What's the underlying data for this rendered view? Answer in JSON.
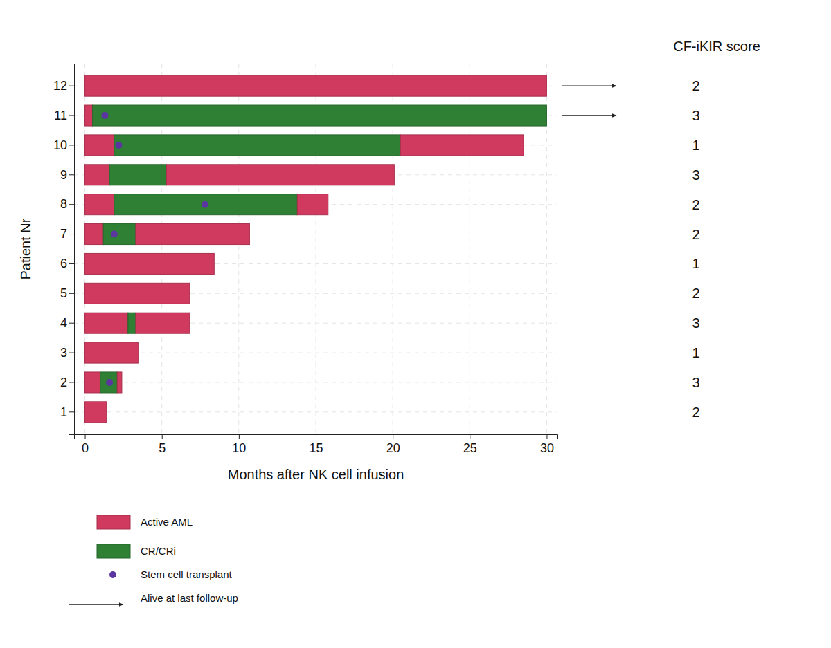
{
  "chart_data": {
    "type": "swimmer",
    "orientation": "horizontal",
    "stacked": true,
    "grid": true,
    "x_label": "Months after NK cell infusion",
    "y_label": "Patient Nr",
    "xlim": [
      -0.7,
      30.7
    ],
    "xticks": [
      0,
      5,
      10,
      15,
      20,
      25,
      30
    ],
    "categories": [
      "1",
      "2",
      "3",
      "4",
      "5",
      "6",
      "7",
      "8",
      "9",
      "10",
      "11",
      "12"
    ],
    "series": [
      {
        "name": "Active AML",
        "color": "#d03a5f"
      },
      {
        "name": "CR/CRi",
        "color": "#2f7f35"
      }
    ],
    "transplant_marker": {
      "name": "Stem cell transplant",
      "color": "#5b35a0"
    },
    "alive_marker": {
      "name": "Alive at last follow-up",
      "color": "#222222"
    },
    "score_title": "CF-iKIR score",
    "patients": [
      {
        "segments": [
          {
            "state": "Active AML",
            "months": 1.4
          }
        ],
        "transplant": null,
        "alive": false,
        "cf_ikir_score": 2
      },
      {
        "segments": [
          {
            "state": "Active AML",
            "months": 1.0
          },
          {
            "state": "CR/CRi",
            "months": 1.1
          },
          {
            "state": "Active AML",
            "months": 0.3
          }
        ],
        "transplant": 1.6,
        "alive": false,
        "cf_ikir_score": 3
      },
      {
        "segments": [
          {
            "state": "Active AML",
            "months": 3.5
          }
        ],
        "transplant": null,
        "alive": false,
        "cf_ikir_score": 1
      },
      {
        "segments": [
          {
            "state": "Active AML",
            "months": 2.8
          },
          {
            "state": "CR/CRi",
            "months": 0.5
          },
          {
            "state": "Active AML",
            "months": 3.5
          }
        ],
        "transplant": null,
        "alive": false,
        "cf_ikir_score": 3
      },
      {
        "segments": [
          {
            "state": "Active AML",
            "months": 6.8
          }
        ],
        "transplant": null,
        "alive": false,
        "cf_ikir_score": 2
      },
      {
        "segments": [
          {
            "state": "Active AML",
            "months": 8.4
          }
        ],
        "transplant": null,
        "alive": false,
        "cf_ikir_score": 1
      },
      {
        "segments": [
          {
            "state": "Active AML",
            "months": 1.2
          },
          {
            "state": "CR/CRi",
            "months": 2.1
          },
          {
            "state": "Active AML",
            "months": 7.4
          }
        ],
        "transplant": 1.9,
        "alive": false,
        "cf_ikir_score": 2
      },
      {
        "segments": [
          {
            "state": "Active AML",
            "months": 1.9
          },
          {
            "state": "CR/CRi",
            "months": 11.9
          },
          {
            "state": "Active AML",
            "months": 2.0
          }
        ],
        "transplant": 7.8,
        "alive": false,
        "cf_ikir_score": 2
      },
      {
        "segments": [
          {
            "state": "Active AML",
            "months": 1.6
          },
          {
            "state": "CR/CRi",
            "months": 3.7
          },
          {
            "state": "Active AML",
            "months": 14.8
          }
        ],
        "transplant": null,
        "alive": false,
        "cf_ikir_score": 3
      },
      {
        "segments": [
          {
            "state": "Active AML",
            "months": 1.9
          },
          {
            "state": "CR/CRi",
            "months": 18.6
          },
          {
            "state": "Active AML",
            "months": 8.0
          }
        ],
        "transplant": 2.2,
        "alive": false,
        "cf_ikir_score": 1
      },
      {
        "segments": [
          {
            "state": "Active AML",
            "months": 0.5
          },
          {
            "state": "CR/CRi",
            "months": 29.5
          }
        ],
        "transplant": 1.3,
        "alive": true,
        "cf_ikir_score": 3
      },
      {
        "segments": [
          {
            "state": "Active AML",
            "months": 30
          }
        ],
        "transplant": null,
        "alive": true,
        "cf_ikir_score": 2
      }
    ]
  }
}
